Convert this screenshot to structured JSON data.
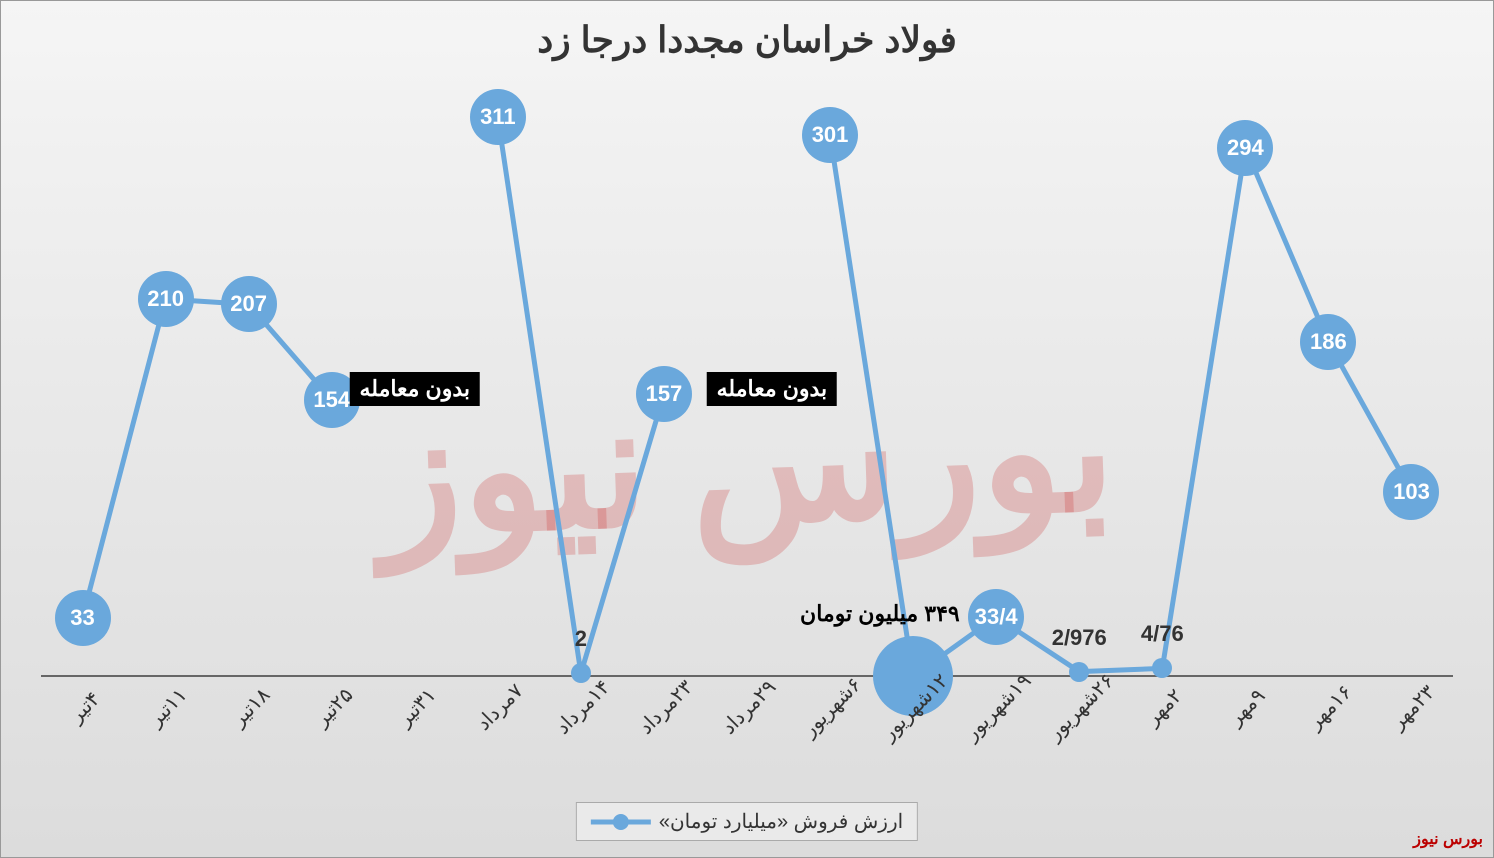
{
  "chart": {
    "type": "line",
    "title": "فولاد خراسان مجددا درجا زد",
    "title_fontsize": 36,
    "title_color": "#333333",
    "line_color": "#6aa8dc",
    "line_width": 5,
    "marker_color": "#6aa8dc",
    "marker_radius_default": 28,
    "marker_radius_small": 10,
    "marker_radius_big": 40,
    "label_text_color": "#ffffff",
    "label_fontsize": 22,
    "background_gradient": [
      "#f5f5f5",
      "#dcdcdc"
    ],
    "axis_color": "#666666",
    "ylim": [
      0,
      320
    ],
    "categories": [
      "۴تیر",
      "۱۱تیر",
      "۱۸تیر",
      "۲۵تیر",
      "۳۱تیر",
      "۷مرداد",
      "۱۴مرداد",
      "۲۳مرداد",
      "۲۹مرداد",
      "۶شهریور",
      "۱۲شهریور",
      "۱۹شهریور",
      "۲۶شهریور",
      "۲مهر",
      "۹مهر",
      "۱۶مهر",
      "۲۳مهر"
    ],
    "values": [
      33,
      210,
      207,
      154,
      null,
      311,
      2,
      157,
      null,
      301,
      0.349,
      33.4,
      2.976,
      4.76,
      294,
      186,
      103
    ],
    "value_labels": [
      "33",
      "210",
      "207",
      "154",
      "",
      "311",
      "2",
      "157",
      "",
      "301",
      "",
      "33/4",
      "2/976",
      "4/76",
      "294",
      "186",
      "103"
    ],
    "marker_sizes": [
      "d",
      "d",
      "d",
      "d",
      null,
      "d",
      "s",
      "d",
      null,
      "d",
      "b",
      "d",
      "s",
      "s",
      "d",
      "d",
      "d"
    ],
    "xtick_fontsize": 20,
    "xtick_rotation": -45,
    "legend": {
      "label": "ارزش فروش «میلیارد تومان»",
      "marker_color": "#6aa8dc"
    },
    "annotations": [
      {
        "text": "بدون معامله",
        "x_index": 4,
        "y_value": 160,
        "style": "black-box"
      },
      {
        "text": "بدون معامله",
        "x_index": 8.3,
        "y_value": 160,
        "style": "black-box"
      },
      {
        "text": "۳۴۹ میلیون تومان",
        "x_index": 9.6,
        "y_value": 35,
        "style": "plain"
      }
    ],
    "watermark": "بورس نیوز",
    "source_credit": "بورس نیوز"
  }
}
